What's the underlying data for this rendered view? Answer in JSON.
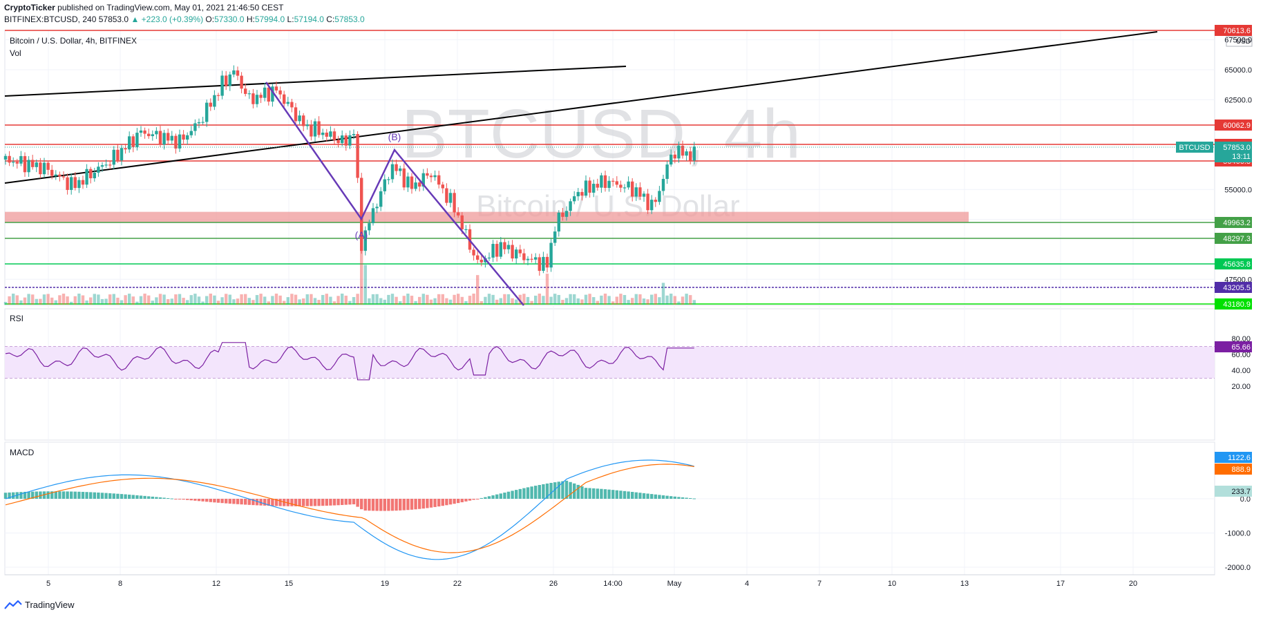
{
  "header": {
    "publisher": "CryptoTicker",
    "published_text": "published on TradingView.com, May 01, 2021 21:46:50 CEST",
    "symbol_line": "BITFINEX:BTCUSD, 240",
    "last": "57853.0",
    "change": "▲ +223.0 (+0.39%)",
    "o_label": "O:",
    "o": "57330.0",
    "h_label": "H:",
    "h": "57994.0",
    "l_label": "L:",
    "l": "57194.0",
    "c_label": "C:",
    "c": "57853.0"
  },
  "pane_labels": {
    "title": "Bitcoin / U.S. Dollar, 4h, BITFINEX",
    "vol": "Vol",
    "rsi": "RSI",
    "macd": "MACD"
  },
  "watermark": {
    "big": "BTCUSD, 4h",
    "sub": "Bitcoin / U.S. Dollar"
  },
  "currency": "USD",
  "price_ticks": [
    "67500.0",
    "65000.0",
    "62500.0",
    "55000.0",
    "52500.0",
    "47500.0"
  ],
  "rsi_ticks": [
    "80.00",
    "60.00",
    "40.00",
    "20.00"
  ],
  "macd_ticks": [
    "0.0",
    "-1000.0",
    "-2000.0"
  ],
  "x_ticks": [
    "5",
    "8",
    "12",
    "15",
    "19",
    "22",
    "26",
    "14:00",
    "May",
    "4",
    "7",
    "10",
    "13",
    "17",
    "20"
  ],
  "wave_labels": {
    "a": "(A)",
    "b": "(B)"
  },
  "levels": [
    {
      "label": "70613.6",
      "color": "#e53935"
    },
    {
      "label": "60062.9",
      "color": "#e53935"
    },
    {
      "label": "58160.1",
      "color": "#e53935"
    },
    {
      "label": "56466.8",
      "color": "#e53935"
    },
    {
      "label": "49963.2",
      "color": "#43a047"
    },
    {
      "label": "48297.3",
      "color": "#43a047"
    },
    {
      "label": "45635.8",
      "color": "#00c853"
    },
    {
      "label": "43205.5",
      "color": "#512da8"
    },
    {
      "label": "43180.9",
      "color": "#00e000"
    }
  ],
  "current_price": {
    "label": "BTCUSD",
    "price": "57853.0",
    "countdown": "13:11",
    "color": "#26a69a"
  },
  "rsi_value": {
    "label": "65.66",
    "color": "#7b1fa2"
  },
  "macd_values": [
    {
      "label": "1122.6",
      "color": "#2196f3"
    },
    {
      "label": "888.9",
      "color": "#ff6d00"
    },
    {
      "label": "233.7",
      "color": "#b2dfdb"
    }
  ],
  "colors": {
    "up": "#26a69a",
    "down": "#ef5350",
    "wave": "#673ab7",
    "rsi": "#7b1fa2",
    "rsi_band": "#f3e5fc"
  },
  "footer": {
    "brand": "TradingView"
  },
  "chart_data": {
    "type": "line",
    "title": "Bitcoin / U.S. Dollar, 4h, BITFINEX",
    "x": [
      "5",
      "8",
      "12",
      "15",
      "19",
      "22",
      "26",
      "May"
    ],
    "series": [
      {
        "name": "",
        "values": [
          57500,
          55800,
          59000,
          63500,
          58000,
          55500,
          49500,
          57853
        ]
      }
    ],
    "ylim": [
      43000,
      71000
    ]
  }
}
